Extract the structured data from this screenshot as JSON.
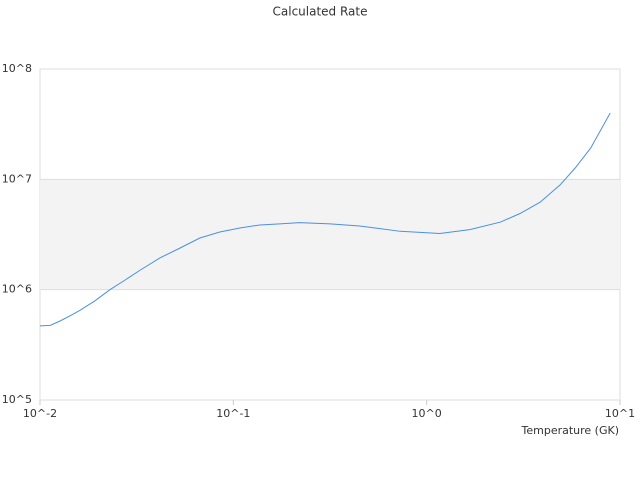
{
  "chart_data": {
    "type": "line",
    "title": "Calculated Rate",
    "x_label": "Temperature (GK)",
    "log_x": true,
    "log_y": true,
    "grid": true,
    "xlim": [
      0.01,
      10
    ],
    "ylim": [
      100000,
      100000000
    ],
    "xticks": [
      {
        "value": 0.01,
        "label": "10^-2"
      },
      {
        "value": 0.1,
        "label": "10^-1"
      },
      {
        "value": 1,
        "label": "10^0"
      },
      {
        "value": 10,
        "label": "10^1"
      }
    ],
    "yticks": [
      {
        "value": 100000,
        "label": "10^5"
      },
      {
        "value": 1000000,
        "label": "10^6"
      },
      {
        "value": 10000000,
        "label": "10^7"
      },
      {
        "value": 100000000,
        "label": "10^8"
      }
    ],
    "series": [
      {
        "color": "#4a90e2",
        "x": [
          0.01,
          0.0113,
          0.0127,
          0.0143,
          0.0161,
          0.0192,
          0.023,
          0.0275,
          0.0329,
          0.0417,
          0.0529,
          0.0671,
          0.0851,
          0.108,
          0.137,
          0.174,
          0.22,
          0.317,
          0.45,
          0.73,
          1.17,
          1.67,
          2.41,
          3.04,
          3.86,
          4.9,
          5.87,
          7.05,
          8.9
        ],
        "values": [
          470000,
          475000,
          520000,
          580000,
          650000,
          790000,
          1000000,
          1220000,
          1500000,
          1940000,
          2380000,
          2940000,
          3330000,
          3620000,
          3860000,
          3950000,
          4050000,
          3950000,
          3780000,
          3380000,
          3230000,
          3500000,
          4100000,
          4900000,
          6200000,
          8900000,
          12700000,
          19200000,
          39900000
        ]
      }
    ]
  }
}
